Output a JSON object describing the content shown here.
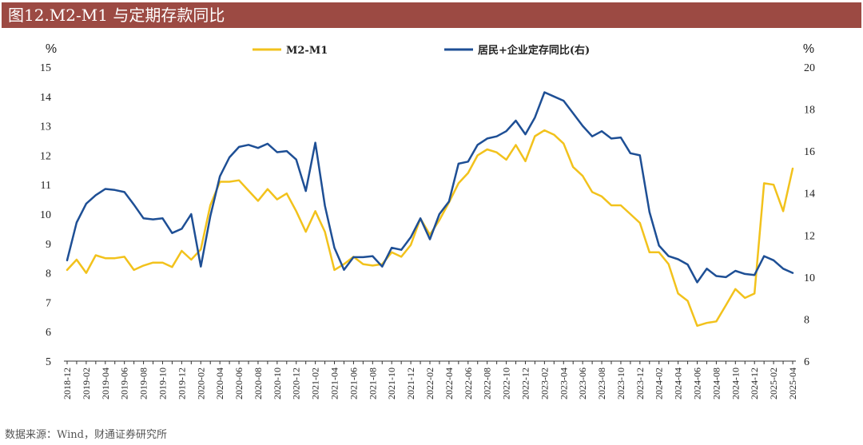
{
  "header": {
    "title": "图12.M2-M1 与定期存款同比"
  },
  "footer": {
    "source": "数据来源：Wind，财通证券研究所"
  },
  "chart_data": {
    "type": "line",
    "title": "图12.M2-M1 与定期存款同比",
    "left_unit": "%",
    "right_unit": "%",
    "yleft": {
      "range": [
        5,
        15
      ],
      "ticks": [
        5,
        6,
        7,
        8,
        9,
        10,
        11,
        12,
        13,
        14,
        15
      ]
    },
    "yright": {
      "range": [
        6,
        20
      ],
      "ticks": [
        6,
        8,
        10,
        12,
        14,
        16,
        18,
        20
      ]
    },
    "legend_position": "top",
    "grid": false,
    "x": [
      "2018-12",
      "2019-01",
      "2019-02",
      "2019-03",
      "2019-04",
      "2019-05",
      "2019-06",
      "2019-07",
      "2019-08",
      "2019-09",
      "2019-10",
      "2019-11",
      "2019-12",
      "2020-01",
      "2020-02",
      "2020-03",
      "2020-04",
      "2020-05",
      "2020-06",
      "2020-07",
      "2020-08",
      "2020-09",
      "2020-10",
      "2020-11",
      "2020-12",
      "2021-01",
      "2021-02",
      "2021-03",
      "2021-04",
      "2021-05",
      "2021-06",
      "2021-07",
      "2021-08",
      "2021-09",
      "2021-10",
      "2021-11",
      "2021-12",
      "2022-01",
      "2022-02",
      "2022-03",
      "2022-04",
      "2022-05",
      "2022-06",
      "2022-07",
      "2022-08",
      "2022-09",
      "2022-10",
      "2022-11",
      "2022-12",
      "2023-01",
      "2023-02",
      "2023-03",
      "2023-04",
      "2023-05",
      "2023-06",
      "2023-07",
      "2023-08",
      "2023-09",
      "2023-10",
      "2023-11",
      "2023-12",
      "2024-01",
      "2024-02",
      "2024-03",
      "2024-04",
      "2024-05",
      "2024-06",
      "2024-07",
      "2024-08",
      "2024-09",
      "2024-10",
      "2024-11",
      "2024-12",
      "2025-01",
      "2025-02",
      "2025-03",
      "2025-04"
    ],
    "xtick_labels": [
      "2018-12",
      "2019-02",
      "2019-04",
      "2019-06",
      "2019-08",
      "2019-10",
      "2019-12",
      "2020-02",
      "2020-04",
      "2020-06",
      "2020-08",
      "2020-10",
      "2020-12",
      "2021-02",
      "2021-04",
      "2021-06",
      "2021-08",
      "2021-10",
      "2021-12",
      "2022-02",
      "2022-04",
      "2022-06",
      "2022-08",
      "2022-10",
      "2022-12",
      "2023-02",
      "2023-04",
      "2023-06",
      "2023-08",
      "2023-10",
      "2023-12",
      "2024-02",
      "2024-04",
      "2024-06",
      "2024-08",
      "2024-10",
      "2024-12",
      "2025-02",
      "2025-04"
    ],
    "series": [
      {
        "name": "M2-M1",
        "axis": "left",
        "color": "#f2c21c",
        "values": [
          8.1,
          8.45,
          8.0,
          8.6,
          8.5,
          8.5,
          8.55,
          8.1,
          8.25,
          8.35,
          8.35,
          8.2,
          8.75,
          8.45,
          8.8,
          10.3,
          11.1,
          11.1,
          11.15,
          10.8,
          10.45,
          10.85,
          10.5,
          10.7,
          10.1,
          9.4,
          10.1,
          9.4,
          8.1,
          8.3,
          8.55,
          8.3,
          8.25,
          8.3,
          8.7,
          8.55,
          8.95,
          9.85,
          9.3,
          9.8,
          10.4,
          11.05,
          11.4,
          12.0,
          12.2,
          12.1,
          11.85,
          12.35,
          11.8,
          12.65,
          12.85,
          12.7,
          12.4,
          11.6,
          11.3,
          10.75,
          10.6,
          10.3,
          10.3,
          10.0,
          9.7,
          8.7,
          8.7,
          8.3,
          7.3,
          7.05,
          6.2,
          6.3,
          6.35,
          6.9,
          7.45,
          7.15,
          7.3,
          11.05,
          11.0,
          10.1,
          11.55
        ]
      },
      {
        "name": "居民+企业定存同比(右)",
        "axis": "right",
        "color": "#1e4f95",
        "values": [
          10.8,
          12.6,
          13.5,
          13.9,
          14.2,
          14.15,
          14.05,
          13.45,
          12.8,
          12.75,
          12.8,
          12.1,
          12.3,
          13.0,
          10.5,
          12.9,
          14.8,
          15.7,
          16.2,
          16.3,
          16.15,
          16.35,
          15.95,
          16.0,
          15.6,
          14.1,
          16.4,
          13.4,
          11.4,
          10.35,
          10.95,
          10.95,
          11.0,
          10.5,
          11.4,
          11.3,
          11.9,
          12.8,
          11.8,
          13.0,
          13.6,
          15.4,
          15.5,
          16.3,
          16.6,
          16.7,
          16.95,
          17.45,
          16.8,
          17.6,
          18.8,
          18.6,
          18.4,
          17.8,
          17.2,
          16.7,
          16.95,
          16.6,
          16.65,
          15.9,
          15.8,
          13.1,
          11.5,
          11.0,
          10.85,
          10.6,
          9.75,
          10.4,
          10.05,
          10.0,
          10.3,
          10.15,
          10.1,
          11.0,
          10.8,
          10.4,
          10.2
        ]
      }
    ]
  }
}
